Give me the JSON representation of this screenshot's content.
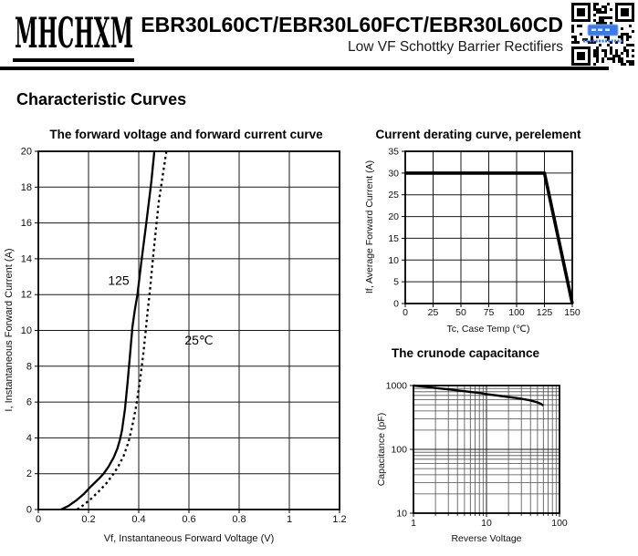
{
  "header": {
    "logo_text": "MHCHXM",
    "title": "EBR30L60CT/EBR30L60FCT/EBR30L60CD",
    "subtitle": "Low VF Schottky Barrier Rectifiers",
    "qr_icon": "qr-code",
    "accent_blue": "#3b79e8",
    "ink": "#000000"
  },
  "section_heading": "Characteristic Curves",
  "chart_data": [
    {
      "id": "fv_if",
      "type": "line",
      "title": "The forward voltage and forward current curve",
      "xlabel": "Vf, Instantaneous Forward Voltage (V)",
      "ylabel": "I, Instantaneous Forward Current (A)",
      "xscale": "linear",
      "yscale": "linear",
      "xlim": [
        0,
        1.2
      ],
      "ylim": [
        0,
        20
      ],
      "grid": true,
      "legend": "none",
      "xticks": [
        0,
        0.2,
        0.4,
        0.6,
        0.8,
        1,
        1.2
      ],
      "xtick_labels": [
        "0",
        "0.2",
        "0.4",
        "0.6",
        "0.8",
        "1",
        "1.2"
      ],
      "yticks": [
        0,
        2,
        4,
        6,
        8,
        10,
        12,
        14,
        16,
        18,
        20
      ],
      "ytick_labels": [
        "0",
        "2",
        "4",
        "6",
        "8",
        "10",
        "12",
        "14",
        "16",
        "18",
        "20"
      ],
      "series": [
        {
          "name": "125",
          "line_style": "solid",
          "points": [
            [
              0.09,
              0
            ],
            [
              0.12,
              0.2
            ],
            [
              0.15,
              0.5
            ],
            [
              0.18,
              0.85
            ],
            [
              0.21,
              1.3
            ],
            [
              0.24,
              1.7
            ],
            [
              0.26,
              2.0
            ],
            [
              0.28,
              2.4
            ],
            [
              0.3,
              2.9
            ],
            [
              0.315,
              3.4
            ],
            [
              0.325,
              3.9
            ],
            [
              0.333,
              4.4
            ],
            [
              0.345,
              5.6
            ],
            [
              0.355,
              7.0
            ],
            [
              0.365,
              8.6
            ],
            [
              0.375,
              10.2
            ],
            [
              0.385,
              11.2
            ],
            [
              0.395,
              12.0
            ],
            [
              0.41,
              13.8
            ],
            [
              0.43,
              16.0
            ],
            [
              0.45,
              18.3
            ],
            [
              0.462,
              20
            ]
          ]
        },
        {
          "name": "25℃",
          "line_style": "dashed",
          "points": [
            [
              0.155,
              0
            ],
            [
              0.18,
              0.25
            ],
            [
              0.21,
              0.6
            ],
            [
              0.24,
              1.0
            ],
            [
              0.27,
              1.45
            ],
            [
              0.3,
              2.0
            ],
            [
              0.32,
              2.45
            ],
            [
              0.34,
              3.0
            ],
            [
              0.36,
              3.8
            ],
            [
              0.375,
              4.7
            ],
            [
              0.39,
              5.8
            ],
            [
              0.405,
              7.2
            ],
            [
              0.42,
              8.9
            ],
            [
              0.435,
              11.0
            ],
            [
              0.445,
              12.3
            ],
            [
              0.46,
              14.5
            ],
            [
              0.48,
              17.2
            ],
            [
              0.51,
              20
            ]
          ]
        }
      ],
      "annotations": [
        {
          "text": "125",
          "x": 0.32,
          "y": 12.55
        },
        {
          "text": "25℃",
          "x": 0.64,
          "y": 9.2
        }
      ]
    },
    {
      "id": "derating",
      "type": "line",
      "title": "Current derating curve, perelement",
      "xlabel": "Tc, Case Temp (℃)",
      "ylabel": "If, Average Forward Current (A)",
      "xscale": "linear",
      "yscale": "linear",
      "xlim": [
        0,
        150
      ],
      "ylim": [
        0,
        35
      ],
      "grid": true,
      "legend": "none",
      "xticks": [
        0,
        25,
        50,
        75,
        100,
        125,
        150
      ],
      "xtick_labels": [
        "0",
        "25",
        "50",
        "75",
        "100",
        "125",
        "150"
      ],
      "yticks": [
        0,
        5,
        10,
        15,
        20,
        25,
        30,
        35
      ],
      "ytick_labels": [
        "0",
        "5",
        "10",
        "15",
        "20",
        "25",
        "30",
        "35"
      ],
      "series": [
        {
          "name": "derating",
          "line_style": "solid",
          "points": [
            [
              0,
              30
            ],
            [
              125,
              30
            ],
            [
              150,
              0
            ]
          ]
        }
      ],
      "annotations": []
    },
    {
      "id": "capacitance",
      "type": "line",
      "title": "The crunode capacitance",
      "xlabel": "Reverse Voltage",
      "ylabel": "Capacitance (pF)",
      "xscale": "log",
      "yscale": "log",
      "xlim": [
        1,
        100
      ],
      "ylim": [
        10,
        1000
      ],
      "grid": true,
      "legend": "none",
      "xticks": [
        1,
        10,
        100
      ],
      "xtick_labels": [
        "1",
        "10",
        "100"
      ],
      "yticks": [
        10,
        100,
        1000
      ],
      "ytick_labels": [
        "10",
        "100",
        "1000"
      ],
      "series": [
        {
          "name": "capacitance",
          "line_style": "solid",
          "points": [
            [
              1,
              1000
            ],
            [
              1.5,
              955
            ],
            [
              2,
              915
            ],
            [
              3,
              870
            ],
            [
              4,
              840
            ],
            [
              5,
              815
            ],
            [
              6,
              795
            ],
            [
              8,
              765
            ],
            [
              10,
              735
            ],
            [
              13,
              705
            ],
            [
              16,
              685
            ],
            [
              20,
              660
            ],
            [
              25,
              640
            ],
            [
              30,
              620
            ],
            [
              40,
              585
            ],
            [
              50,
              545
            ],
            [
              55,
              520
            ],
            [
              60,
              487
            ]
          ]
        }
      ],
      "annotations": []
    }
  ]
}
